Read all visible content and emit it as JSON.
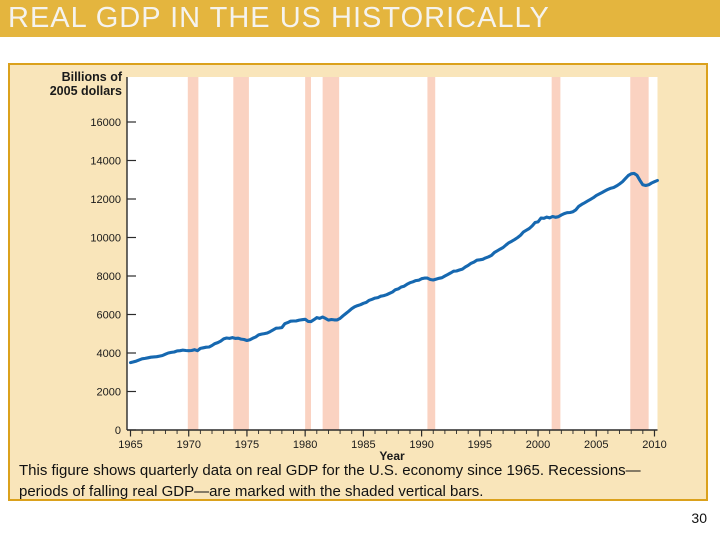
{
  "banner": {
    "title": "REAL GDP IN THE US HISTORICALLY"
  },
  "figure": {
    "y_axis_label_line1": "Billions of",
    "y_axis_label_line2": "2005 dollars",
    "x_axis_label": "Year",
    "caption_line1": "This figure shows quarterly data on real GDP for the U.S. economy since 1965. Recessions—",
    "caption_line2": "periods of falling real GDP—are marked with the shaded vertical bars."
  },
  "page_number": "30",
  "colors": {
    "banner_gold": "#E4B53E",
    "panel_cream": "#F9E5BA",
    "panel_border": "#DBA11C",
    "recession_pink": "#FAD2C1",
    "line_blue": "#1668B0",
    "axis": "#2b2b2b",
    "tick_text": "#1a1a1a"
  },
  "chart_data": {
    "type": "line",
    "title": "",
    "xlabel": "Year",
    "ylabel": "Billions of 2005 dollars",
    "xlim": [
      1965,
      2010.3
    ],
    "ylim": [
      0,
      18300
    ],
    "yticks": [
      0,
      2000,
      4000,
      6000,
      8000,
      10000,
      12000,
      14000,
      16000
    ],
    "xticks": [
      1965,
      1970,
      1975,
      1980,
      1985,
      1990,
      1995,
      2000,
      2005,
      2010
    ],
    "x_minor_tick_interval": 1,
    "grid": false,
    "legend": "none",
    "recession_color": "#FAD2C1",
    "recessions": [
      {
        "start": 1969.92,
        "end": 1970.83
      },
      {
        "start": 1973.83,
        "end": 1975.17
      },
      {
        "start": 1980.0,
        "end": 1980.5
      },
      {
        "start": 1981.5,
        "end": 1982.92
      },
      {
        "start": 1990.5,
        "end": 1991.17
      },
      {
        "start": 2001.17,
        "end": 2001.92
      },
      {
        "start": 2007.92,
        "end": 2009.5
      }
    ],
    "series": [
      {
        "name": "Real GDP (quarterly)",
        "color": "#1668B0",
        "points": [
          [
            1965.0,
            3500
          ],
          [
            1965.25,
            3540
          ],
          [
            1965.5,
            3580
          ],
          [
            1965.75,
            3640
          ],
          [
            1966.0,
            3700
          ],
          [
            1966.25,
            3720
          ],
          [
            1966.5,
            3750
          ],
          [
            1966.75,
            3780
          ],
          [
            1967.0,
            3800
          ],
          [
            1967.25,
            3810
          ],
          [
            1967.5,
            3840
          ],
          [
            1967.75,
            3870
          ],
          [
            1968.0,
            3940
          ],
          [
            1968.25,
            4000
          ],
          [
            1968.5,
            4030
          ],
          [
            1968.75,
            4050
          ],
          [
            1969.0,
            4110
          ],
          [
            1969.25,
            4120
          ],
          [
            1969.5,
            4150
          ],
          [
            1969.75,
            4130
          ],
          [
            1970.0,
            4120
          ],
          [
            1970.25,
            4130
          ],
          [
            1970.5,
            4170
          ],
          [
            1970.75,
            4120
          ],
          [
            1971.0,
            4240
          ],
          [
            1971.25,
            4270
          ],
          [
            1971.5,
            4300
          ],
          [
            1971.75,
            4310
          ],
          [
            1972.0,
            4390
          ],
          [
            1972.25,
            4490
          ],
          [
            1972.5,
            4540
          ],
          [
            1972.75,
            4620
          ],
          [
            1973.0,
            4730
          ],
          [
            1973.25,
            4780
          ],
          [
            1973.5,
            4760
          ],
          [
            1973.75,
            4800
          ],
          [
            1974.0,
            4760
          ],
          [
            1974.25,
            4770
          ],
          [
            1974.5,
            4720
          ],
          [
            1974.75,
            4700
          ],
          [
            1975.0,
            4650
          ],
          [
            1975.25,
            4690
          ],
          [
            1975.5,
            4770
          ],
          [
            1975.75,
            4830
          ],
          [
            1976.0,
            4940
          ],
          [
            1976.25,
            4980
          ],
          [
            1976.5,
            5010
          ],
          [
            1976.75,
            5040
          ],
          [
            1977.0,
            5110
          ],
          [
            1977.25,
            5200
          ],
          [
            1977.5,
            5290
          ],
          [
            1977.75,
            5300
          ],
          [
            1978.0,
            5320
          ],
          [
            1978.25,
            5520
          ],
          [
            1978.5,
            5580
          ],
          [
            1978.75,
            5650
          ],
          [
            1979.0,
            5660
          ],
          [
            1979.25,
            5670
          ],
          [
            1979.5,
            5710
          ],
          [
            1979.75,
            5730
          ],
          [
            1980.0,
            5750
          ],
          [
            1980.25,
            5640
          ],
          [
            1980.5,
            5630
          ],
          [
            1980.75,
            5730
          ],
          [
            1981.0,
            5840
          ],
          [
            1981.25,
            5800
          ],
          [
            1981.5,
            5870
          ],
          [
            1981.75,
            5800
          ],
          [
            1982.0,
            5710
          ],
          [
            1982.25,
            5740
          ],
          [
            1982.5,
            5720
          ],
          [
            1982.75,
            5720
          ],
          [
            1983.0,
            5800
          ],
          [
            1983.25,
            5930
          ],
          [
            1983.5,
            6050
          ],
          [
            1983.75,
            6170
          ],
          [
            1984.0,
            6300
          ],
          [
            1984.25,
            6400
          ],
          [
            1984.5,
            6460
          ],
          [
            1984.75,
            6510
          ],
          [
            1985.0,
            6580
          ],
          [
            1985.25,
            6630
          ],
          [
            1985.5,
            6740
          ],
          [
            1985.75,
            6790
          ],
          [
            1986.0,
            6850
          ],
          [
            1986.25,
            6880
          ],
          [
            1986.5,
            6950
          ],
          [
            1986.75,
            6980
          ],
          [
            1987.0,
            7030
          ],
          [
            1987.25,
            7100
          ],
          [
            1987.5,
            7170
          ],
          [
            1987.75,
            7290
          ],
          [
            1988.0,
            7330
          ],
          [
            1988.25,
            7430
          ],
          [
            1988.5,
            7470
          ],
          [
            1988.75,
            7570
          ],
          [
            1989.0,
            7650
          ],
          [
            1989.25,
            7700
          ],
          [
            1989.5,
            7760
          ],
          [
            1989.75,
            7780
          ],
          [
            1990.0,
            7860
          ],
          [
            1990.25,
            7890
          ],
          [
            1990.5,
            7890
          ],
          [
            1990.75,
            7820
          ],
          [
            1991.0,
            7790
          ],
          [
            1991.25,
            7840
          ],
          [
            1991.5,
            7880
          ],
          [
            1991.75,
            7910
          ],
          [
            1992.0,
            8000
          ],
          [
            1992.25,
            8080
          ],
          [
            1992.5,
            8160
          ],
          [
            1992.75,
            8250
          ],
          [
            1993.0,
            8260
          ],
          [
            1993.25,
            8310
          ],
          [
            1993.5,
            8360
          ],
          [
            1993.75,
            8470
          ],
          [
            1994.0,
            8550
          ],
          [
            1994.25,
            8660
          ],
          [
            1994.5,
            8720
          ],
          [
            1994.75,
            8820
          ],
          [
            1995.0,
            8840
          ],
          [
            1995.25,
            8870
          ],
          [
            1995.5,
            8940
          ],
          [
            1995.75,
            9000
          ],
          [
            1996.0,
            9070
          ],
          [
            1996.25,
            9220
          ],
          [
            1996.5,
            9310
          ],
          [
            1996.75,
            9400
          ],
          [
            1997.0,
            9480
          ],
          [
            1997.25,
            9610
          ],
          [
            1997.5,
            9730
          ],
          [
            1997.75,
            9810
          ],
          [
            1998.0,
            9900
          ],
          [
            1998.25,
            10000
          ],
          [
            1998.5,
            10120
          ],
          [
            1998.75,
            10290
          ],
          [
            1999.0,
            10380
          ],
          [
            1999.25,
            10470
          ],
          [
            1999.5,
            10600
          ],
          [
            1999.75,
            10780
          ],
          [
            2000.0,
            10810
          ],
          [
            2000.25,
            11010
          ],
          [
            2000.5,
            11000
          ],
          [
            2000.75,
            11060
          ],
          [
            2001.0,
            11020
          ],
          [
            2001.25,
            11090
          ],
          [
            2001.5,
            11050
          ],
          [
            2001.75,
            11080
          ],
          [
            2002.0,
            11170
          ],
          [
            2002.25,
            11240
          ],
          [
            2002.5,
            11290
          ],
          [
            2002.75,
            11300
          ],
          [
            2003.0,
            11340
          ],
          [
            2003.25,
            11440
          ],
          [
            2003.5,
            11620
          ],
          [
            2003.75,
            11720
          ],
          [
            2004.0,
            11800
          ],
          [
            2004.25,
            11890
          ],
          [
            2004.5,
            11980
          ],
          [
            2004.75,
            12070
          ],
          [
            2005.0,
            12180
          ],
          [
            2005.25,
            12260
          ],
          [
            2005.5,
            12340
          ],
          [
            2005.75,
            12420
          ],
          [
            2006.0,
            12500
          ],
          [
            2006.25,
            12560
          ],
          [
            2006.5,
            12600
          ],
          [
            2006.75,
            12680
          ],
          [
            2007.0,
            12780
          ],
          [
            2007.25,
            12900
          ],
          [
            2007.5,
            13060
          ],
          [
            2007.75,
            13220
          ],
          [
            2008.0,
            13310
          ],
          [
            2008.25,
            13330
          ],
          [
            2008.5,
            13230
          ],
          [
            2008.75,
            12970
          ],
          [
            2009.0,
            12740
          ],
          [
            2009.25,
            12700
          ],
          [
            2009.5,
            12740
          ],
          [
            2009.75,
            12830
          ],
          [
            2010.0,
            12900
          ],
          [
            2010.25,
            12960
          ]
        ]
      }
    ]
  }
}
